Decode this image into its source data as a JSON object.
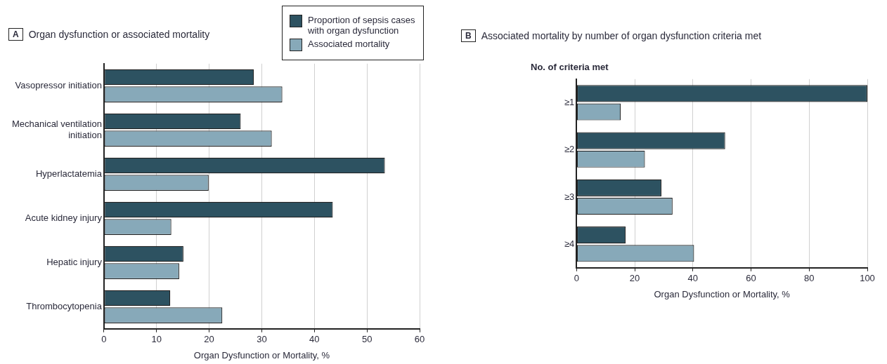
{
  "chart_data": [
    {
      "type": "bar",
      "orientation": "horizontal",
      "title": "Organ dysfunction or associated mortality",
      "annotations": [
        "A"
      ],
      "xlabel": "Organ Dysfunction or Mortality, %",
      "categories": [
        "Vasopressor initiation",
        "Mechanical ventilation initiation",
        "Hyperlactatemia",
        "Acute kidney injury",
        "Hepatic injury",
        "Thrombocytopenia"
      ],
      "series": [
        {
          "name": "Proportion of sepsis cases with organ dysfunction",
          "color": "#2d5261",
          "values": [
            28.5,
            26.0,
            53.4,
            43.5,
            15.1,
            12.6
          ]
        },
        {
          "name": "Associated mortality",
          "color": "#87a9b9",
          "values": [
            33.9,
            31.9,
            19.9,
            12.8,
            14.3,
            22.5
          ]
        }
      ],
      "xlim": [
        0,
        60
      ],
      "xticks": [
        0,
        10,
        20,
        30,
        40,
        50,
        60
      ],
      "grid": "x",
      "legend": "top right"
    },
    {
      "type": "bar",
      "orientation": "horizontal",
      "title": "Associated mortality by number of organ dysfunction criteria met",
      "annotations": [
        "B"
      ],
      "xlabel": "Organ Dysfunction or Mortality, %",
      "ylabel": "No. of criteria met",
      "categories": [
        "≥1",
        "≥2",
        "≥3",
        "≥4"
      ],
      "series": [
        {
          "color": "#2d5261",
          "values": [
            100,
            51.1,
            29.2,
            16.9
          ]
        },
        {
          "color": "#87a9b9",
          "values": [
            15.2,
            23.5,
            33.0,
            40.4
          ]
        }
      ],
      "xlim": [
        0,
        100
      ],
      "xticks": [
        0,
        20,
        40,
        60,
        80,
        100
      ],
      "grid": "x"
    }
  ]
}
